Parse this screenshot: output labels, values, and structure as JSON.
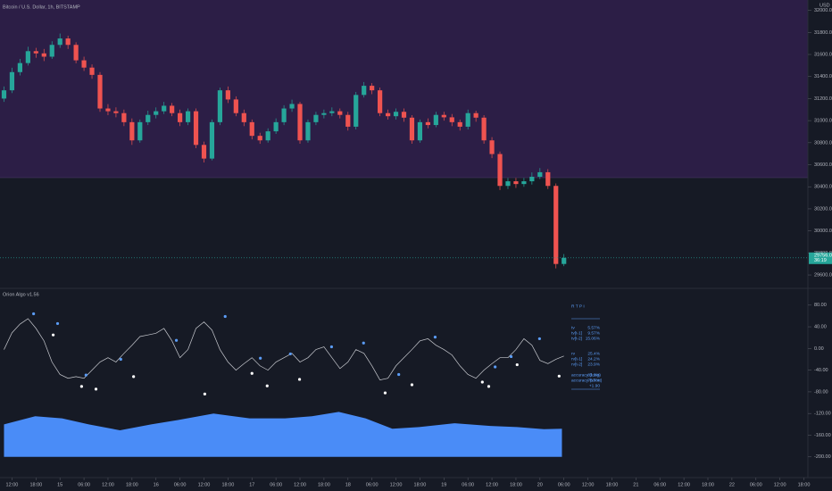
{
  "header": {
    "title": "Bitcoin / U.S. Dollar, 1h, BITSTAMP",
    "currency": "USD"
  },
  "chart_data": [
    {
      "type": "candlestick",
      "x": [
        -2,
        0,
        2,
        4,
        6,
        8,
        10,
        12,
        14,
        16,
        18,
        20,
        22,
        24,
        26,
        28,
        30,
        32,
        34,
        36,
        38,
        40,
        42,
        44,
        46,
        48,
        50,
        52,
        54,
        56,
        58,
        60,
        62,
        64,
        66,
        68,
        70,
        72,
        74,
        76,
        78,
        80,
        82,
        84,
        86,
        88,
        90,
        92,
        94,
        96,
        98,
        100,
        102,
        104,
        106,
        108,
        110,
        112,
        114,
        116,
        118,
        120,
        122,
        124,
        126,
        128,
        130,
        132,
        134,
        136,
        138
      ],
      "open": [
        31200,
        31275,
        31440,
        31522,
        31630,
        31610,
        31580,
        31687,
        31745,
        31687,
        31547,
        31481,
        31415,
        31110,
        31085,
        31068,
        30986,
        30821,
        30986,
        31052,
        31085,
        31135,
        31068,
        30986,
        31085,
        30780,
        30656,
        30986,
        31275,
        31192,
        31068,
        30986,
        30862,
        30821,
        30903,
        30986,
        31110,
        31151,
        30821,
        30986,
        31052,
        31068,
        31085,
        31052,
        30945,
        31233,
        31316,
        31275,
        31068,
        31040,
        31080,
        31027,
        30821,
        30986,
        30960,
        31052,
        31030,
        30986,
        30945,
        31068,
        31027,
        30821,
        30697,
        30408,
        30450,
        30425,
        30450,
        30491,
        30532,
        30408,
        29700
      ],
      "high": [
        31310,
        31480,
        31560,
        31670,
        31660,
        31650,
        31720,
        31790,
        31770,
        31710,
        31580,
        31510,
        31440,
        31150,
        31120,
        31100,
        31020,
        31010,
        31090,
        31120,
        31170,
        31160,
        31100,
        31110,
        31110,
        30810,
        31010,
        31300,
        31310,
        31220,
        31100,
        31010,
        30890,
        30930,
        31020,
        31140,
        31190,
        31170,
        31010,
        31080,
        31100,
        31120,
        31110,
        31080,
        31260,
        31350,
        31340,
        31300,
        31100,
        31110,
        31110,
        31050,
        31010,
        31020,
        31080,
        31080,
        31060,
        31010,
        31100,
        31090,
        31050,
        30850,
        30720,
        30480,
        30480,
        30480,
        30530,
        30570,
        30560,
        30430,
        29790
      ],
      "low": [
        31170,
        31250,
        31410,
        31500,
        31570,
        31540,
        31560,
        31660,
        31650,
        31520,
        31450,
        31380,
        31080,
        31050,
        31030,
        30950,
        30780,
        30800,
        30960,
        31020,
        31060,
        31040,
        30950,
        30960,
        30750,
        30620,
        30640,
        30960,
        31160,
        31040,
        30950,
        30830,
        30790,
        30800,
        30880,
        30960,
        31080,
        30790,
        30800,
        30960,
        31020,
        31040,
        31020,
        30910,
        30920,
        31210,
        31240,
        31040,
        31010,
        31010,
        30990,
        30790,
        30800,
        30930,
        30940,
        31000,
        30950,
        30910,
        30920,
        30990,
        30790,
        30660,
        30370,
        30380,
        30390,
        30400,
        30420,
        30470,
        30380,
        29660,
        29680
      ],
      "close": [
        31275,
        31440,
        31522,
        31630,
        31610,
        31580,
        31687,
        31745,
        31687,
        31547,
        31481,
        31415,
        31110,
        31085,
        31068,
        30986,
        30821,
        30986,
        31052,
        31085,
        31135,
        31068,
        30986,
        31085,
        30780,
        30656,
        30986,
        31275,
        31192,
        31068,
        30986,
        30862,
        30821,
        30903,
        30986,
        31110,
        31151,
        30821,
        30986,
        31052,
        31068,
        31085,
        31052,
        30945,
        31233,
        31316,
        31275,
        31068,
        31040,
        31080,
        31027,
        30821,
        30986,
        30960,
        31052,
        31030,
        30986,
        30945,
        31068,
        31027,
        30821,
        30697,
        30408,
        30450,
        30425,
        30450,
        30491,
        30532,
        30408,
        29700,
        29756
      ],
      "up_color": "#26a69a",
      "down_color": "#ef5350",
      "xlim": [
        -3,
        199
      ],
      "ylim": [
        29487,
        32094
      ],
      "yticks": [
        {
          "value": 29600,
          "label": "29600.00"
        },
        {
          "value": 29800,
          "label": "29800.00"
        },
        {
          "value": 30000,
          "label": "30000.00"
        },
        {
          "value": 30200,
          "label": "30200.00"
        },
        {
          "value": 30400,
          "label": "30400.00"
        },
        {
          "value": 30600,
          "label": "30600.00"
        },
        {
          "value": 30800,
          "label": "30800.00"
        },
        {
          "value": 31000,
          "label": "31000.00"
        },
        {
          "value": 31200,
          "label": "31200.00"
        },
        {
          "value": 31400,
          "label": "31400.00"
        },
        {
          "value": 31600,
          "label": "31600.00"
        },
        {
          "value": 31800,
          "label": "31800.00"
        },
        {
          "value": 32000,
          "label": "32000.00"
        }
      ],
      "last_price_label": "29756.00",
      "countdown": "36:19"
    },
    {
      "type": "line",
      "title": "Orion Algo v1.56",
      "x": [
        -2,
        0,
        2,
        4,
        6,
        8,
        10,
        12,
        14,
        16,
        18,
        20,
        22,
        24,
        26,
        28,
        30,
        32,
        34,
        36,
        38,
        40,
        42,
        44,
        46,
        48,
        50,
        52,
        54,
        56,
        58,
        60,
        62,
        64,
        66,
        68,
        70,
        72,
        74,
        76,
        78,
        80,
        82,
        84,
        86,
        88,
        90,
        92,
        94,
        96,
        98,
        100,
        102,
        104,
        106,
        108,
        110,
        112,
        114,
        116,
        118,
        120,
        122,
        124,
        126,
        128,
        130,
        132,
        134,
        136,
        138
      ],
      "values": [
        -2,
        29,
        45,
        55,
        37,
        14,
        -25,
        -48,
        -55,
        -52,
        -55,
        -40,
        -25,
        -17,
        -25,
        -9,
        6,
        22,
        25,
        28,
        37,
        14,
        -17,
        -2,
        37,
        49,
        34,
        -2,
        -25,
        -40,
        -28,
        -17,
        -32,
        -40,
        -25,
        -17,
        -9,
        -25,
        -17,
        -2,
        3,
        -17,
        -37,
        -25,
        -2,
        -9,
        -32,
        -58,
        -55,
        -32,
        -17,
        -2,
        14,
        18,
        6,
        -2,
        -12,
        -32,
        -48,
        -55,
        -40,
        -28,
        -17,
        -17,
        -2,
        18,
        6,
        -22,
        -28,
        -20,
        -14
      ],
      "color": "#c8cad0",
      "area": {
        "x": [
          -2,
          5.8,
          12.5,
          19.2,
          27,
          34.8,
          41.5,
          50.4,
          59.4,
          68.3,
          75,
          81.7,
          88.4,
          95.1,
          101.8,
          110.7,
          119.6,
          126.3,
          133,
          137.5
        ],
        "values": [
          -140,
          -125,
          -129,
          -140,
          -151,
          -140,
          -132,
          -120,
          -129,
          -129,
          -125,
          -117,
          -129,
          -148,
          -145,
          -138,
          -143,
          -145,
          -149,
          -148
        ],
        "color": "#4a8cf7"
      },
      "upper_dots": {
        "color": "#5b9cf6",
        "x": [
          5.4,
          11.4,
          18.5,
          27.2,
          41.1,
          53.3,
          62.1,
          69.6,
          79.9,
          87.9,
          96.7,
          105.8,
          120.8,
          124.8,
          131.9
        ],
        "values": [
          64,
          46,
          -49,
          -20,
          15,
          59,
          -18,
          -10,
          3,
          10,
          -48,
          21,
          -34,
          -15,
          18
        ]
      },
      "lower_dots": {
        "color": "#ffffff",
        "x": [
          10.3,
          17.4,
          21,
          30.4,
          48.2,
          60,
          63.8,
          71.9,
          93.3,
          100,
          117.6,
          119.2,
          126.3,
          136.8
        ],
        "values": [
          25,
          -70,
          -75,
          -52,
          -84,
          -46,
          -69,
          -57,
          -82,
          -67,
          -62,
          -70,
          -30,
          -51
        ]
      },
      "xlim": [
        -3,
        199
      ],
      "ylim": [
        -235,
        106
      ],
      "yticks": [
        {
          "value": 80,
          "label": "80.00"
        },
        {
          "value": 40,
          "label": "40.00"
        },
        {
          "value": 0,
          "label": "0.00"
        },
        {
          "value": -40,
          "label": "-40.00"
        },
        {
          "value": -80,
          "label": "-80.00"
        },
        {
          "value": -120,
          "label": "-120.00"
        },
        {
          "value": -160,
          "label": "-160.00"
        },
        {
          "value": -200,
          "label": "-200.00"
        }
      ],
      "xticks": [
        {
          "value": 0,
          "label": "12:00"
        },
        {
          "value": 6,
          "label": "18:00"
        },
        {
          "value": 12,
          "label": "15"
        },
        {
          "value": 18,
          "label": "06:00"
        },
        {
          "value": 24,
          "label": "12:00"
        },
        {
          "value": 30,
          "label": "18:00"
        },
        {
          "value": 36,
          "label": "16"
        },
        {
          "value": 42,
          "label": "06:00"
        },
        {
          "value": 48,
          "label": "12:00"
        },
        {
          "value": 54,
          "label": "18:00"
        },
        {
          "value": 60,
          "label": "17"
        },
        {
          "value": 66,
          "label": "06:00"
        },
        {
          "value": 72,
          "label": "12:00"
        },
        {
          "value": 78,
          "label": "18:00"
        },
        {
          "value": 84,
          "label": "18"
        },
        {
          "value": 90,
          "label": "06:00"
        },
        {
          "value": 96,
          "label": "12:00"
        },
        {
          "value": 102,
          "label": "18:00"
        },
        {
          "value": 108,
          "label": "19"
        },
        {
          "value": 114,
          "label": "06:00"
        },
        {
          "value": 120,
          "label": "12:00"
        },
        {
          "value": 126,
          "label": "18:00"
        },
        {
          "value": 132,
          "label": "20"
        },
        {
          "value": 138,
          "label": "06:00"
        },
        {
          "value": 144,
          "label": "12:00"
        },
        {
          "value": 150,
          "label": "18:00"
        },
        {
          "value": 156,
          "label": "21"
        },
        {
          "value": 162,
          "label": "06:00"
        },
        {
          "value": 168,
          "label": "12:00"
        },
        {
          "value": 174,
          "label": "18:00"
        },
        {
          "value": 180,
          "label": "22"
        },
        {
          "value": 186,
          "label": "06:00"
        },
        {
          "value": 192,
          "label": "12:00"
        },
        {
          "value": 198,
          "label": "18:00"
        }
      ],
      "table": {
        "header": "R T P I",
        "rows": [
          [
            "tv",
            "5.57%"
          ],
          [
            "tv[t-1]",
            "9.57%"
          ],
          [
            "tv[t-2]",
            "15.06%"
          ],
          [
            "rv",
            "25.4%"
          ],
          [
            "rv[t-1]",
            "24.2%"
          ],
          [
            "rv[t-2]",
            "23.9%"
          ],
          [
            "accuracy (long)",
            "81.3%"
          ],
          [
            "accuracy (short)",
            "76.7%"
          ]
        ],
        "footer": "+1.90"
      }
    }
  ]
}
